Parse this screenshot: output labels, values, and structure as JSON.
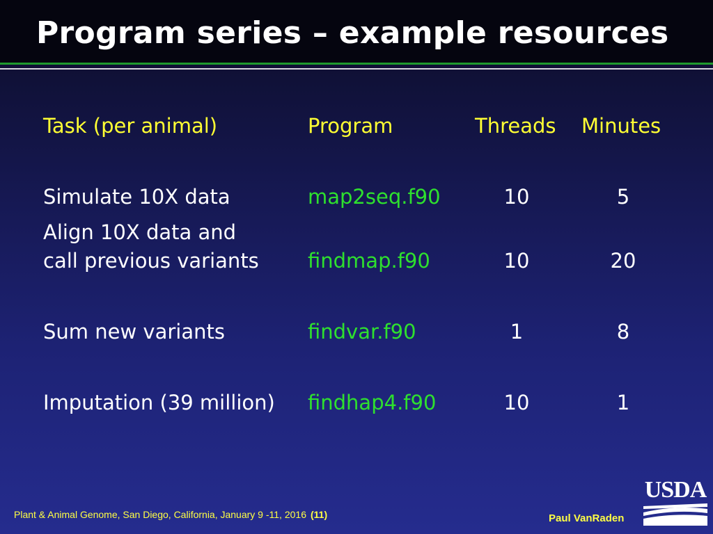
{
  "slide": {
    "title": "Program series – example resources"
  },
  "table": {
    "headers": {
      "task": "Task (per animal)",
      "program": "Program",
      "threads": "Threads",
      "minutes": "Minutes"
    },
    "rows": [
      {
        "task_lines": [
          "Simulate 10X data"
        ],
        "program": "map2seq.f90",
        "threads": "10",
        "minutes": "5"
      },
      {
        "task_lines": [
          "Align 10X data and",
          "call previous variants"
        ],
        "program": "findmap.f90",
        "threads": "10",
        "minutes": "20"
      },
      {
        "task_lines": [
          "Sum new variants"
        ],
        "program": "findvar.f90",
        "threads": "1",
        "minutes": "8"
      },
      {
        "task_lines": [
          "Imputation (39 million)"
        ],
        "program": "findhap4.f90",
        "threads": "10",
        "minutes": "1"
      }
    ]
  },
  "footer": {
    "conference": "Plant & Animal Genome, San Diego,  California, January  9 -11, 2016",
    "page_number": "(11)",
    "author": "Paul VanRaden",
    "logo_text": "USDA"
  },
  "colors": {
    "title": "#ffffff",
    "header_text": "#ffff33",
    "program_text": "#2ee02e",
    "footer_text": "#ffff44",
    "accent_rule": "#1f9b2e"
  }
}
